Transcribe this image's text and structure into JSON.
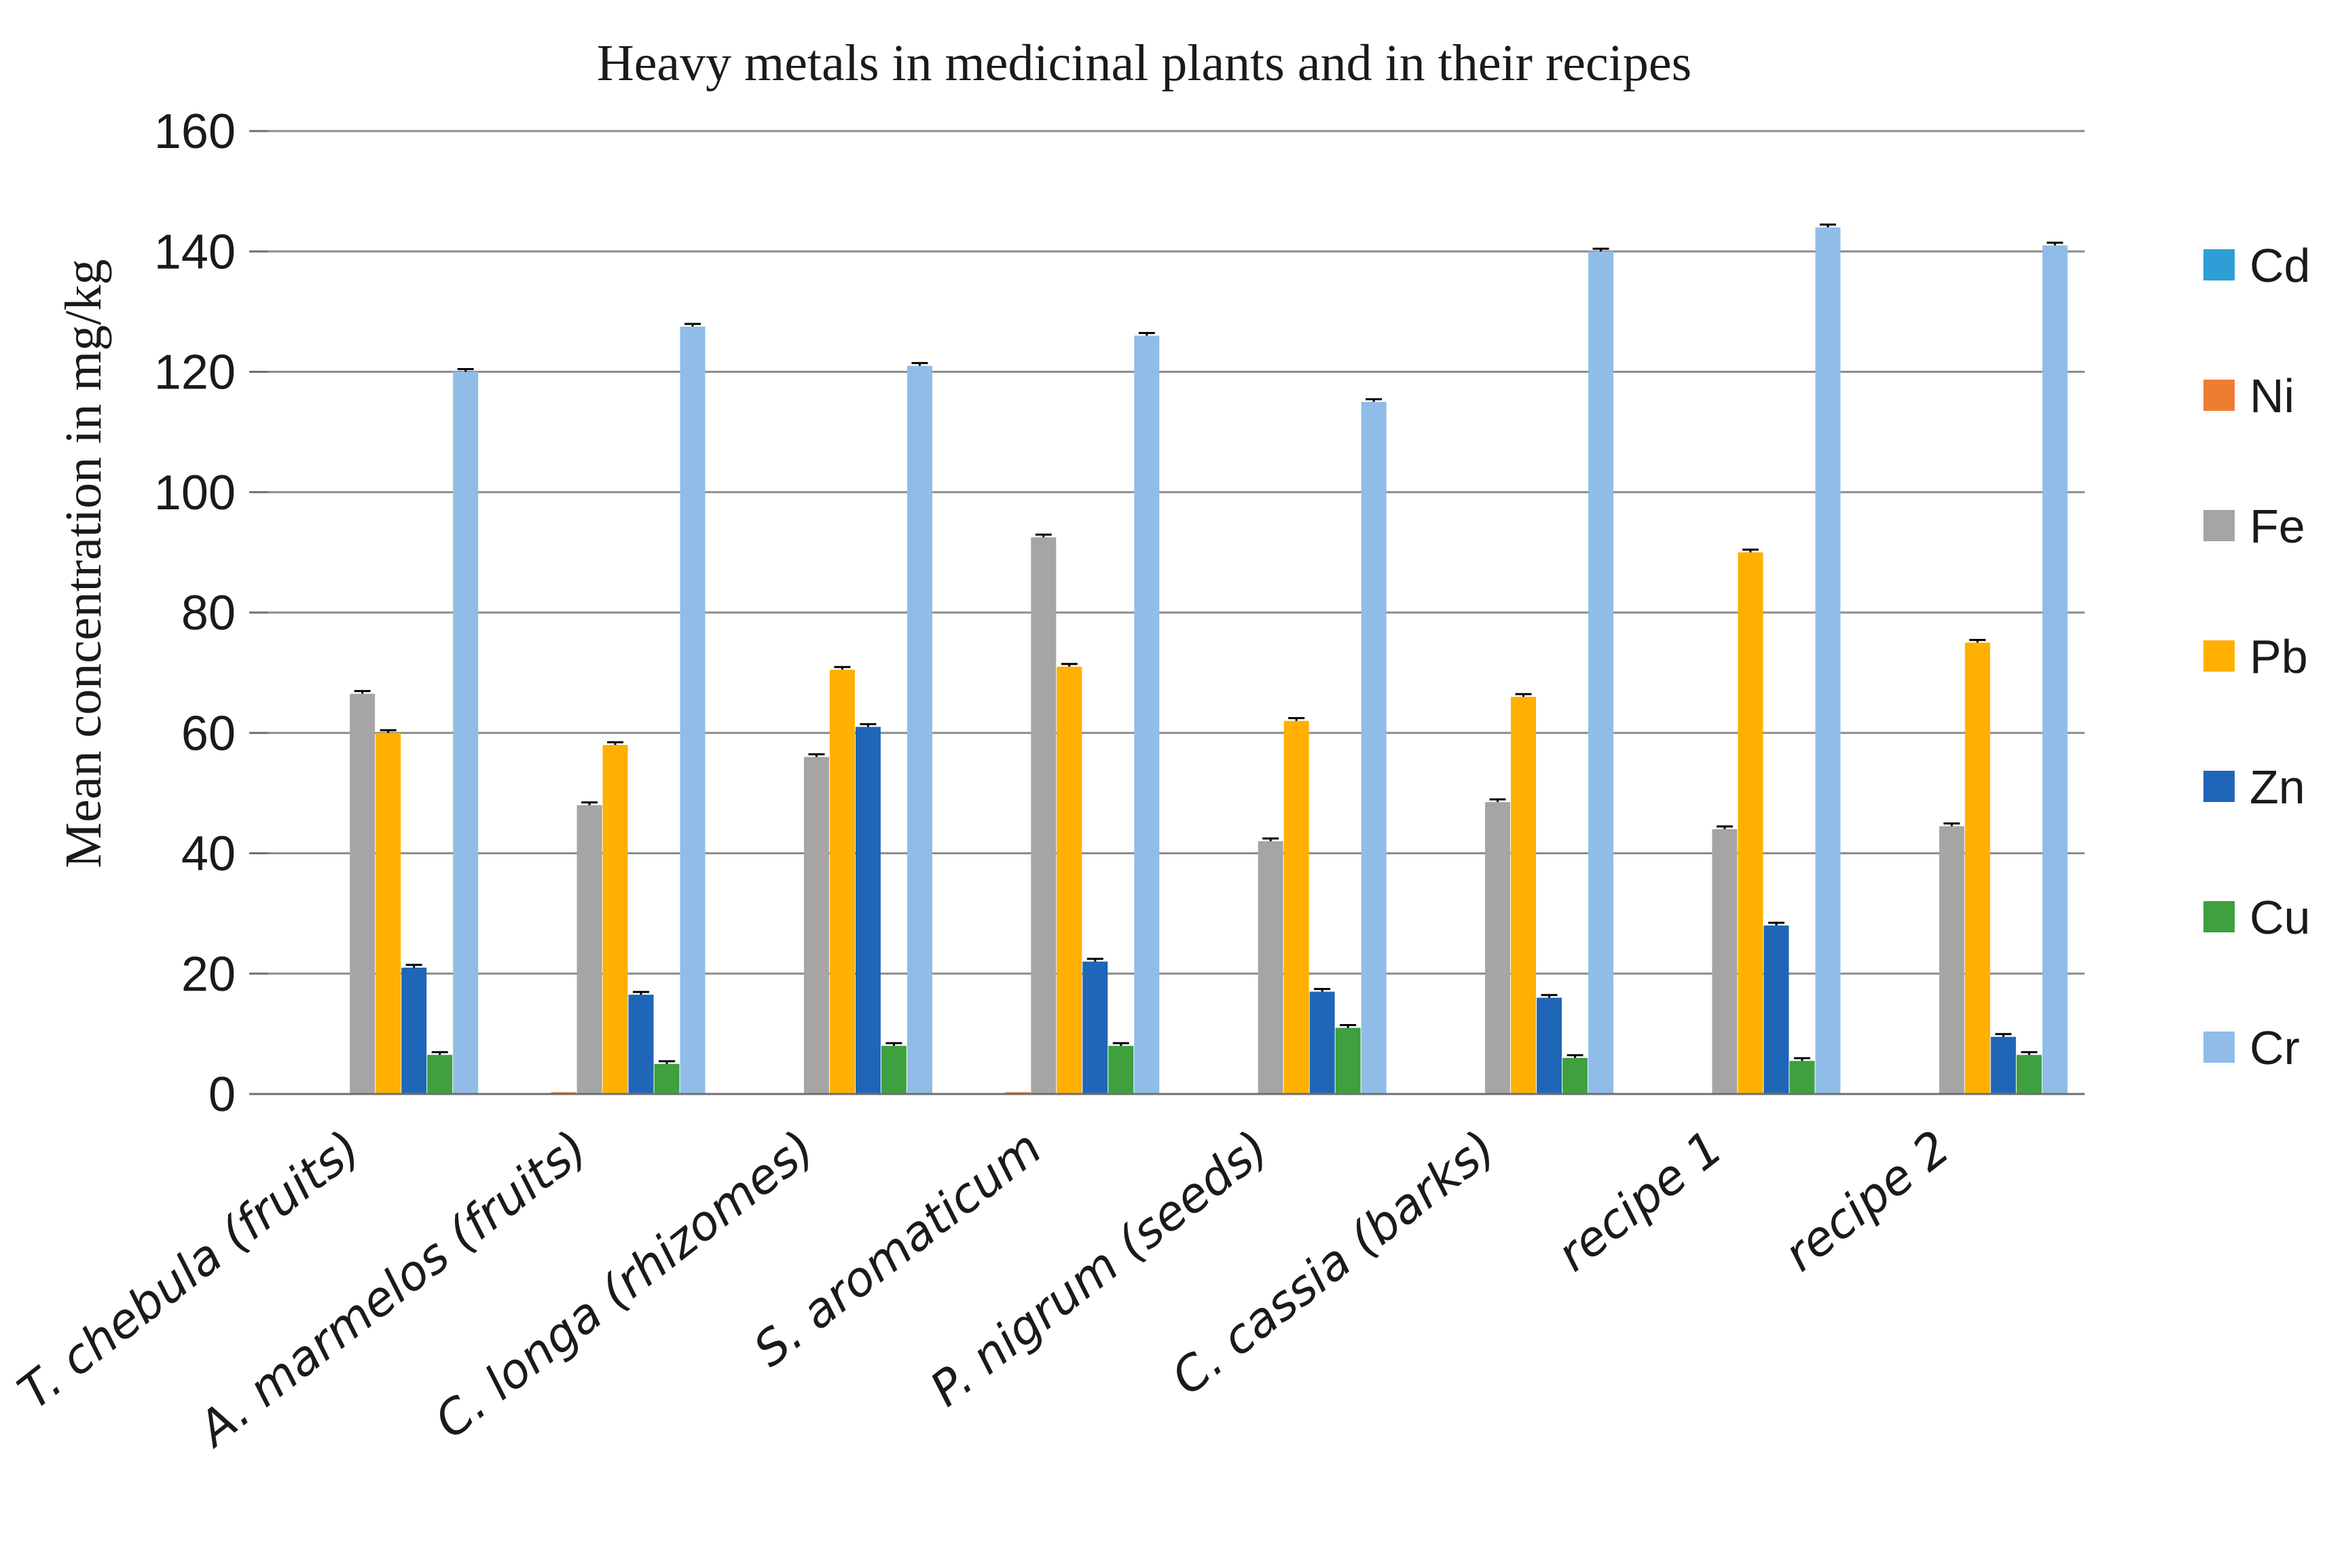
{
  "chart_data": {
    "type": "bar",
    "title": "Heavy metals in medicinal plants and in their  recipes",
    "xlabel": "",
    "ylabel": "Mean concentration in mg/kg",
    "ylim": [
      0,
      160
    ],
    "yticks": [
      0,
      20,
      40,
      60,
      80,
      100,
      120,
      140,
      160
    ],
    "ytick_labels": [
      "0",
      "20",
      "40",
      "60",
      "80",
      "100",
      "120",
      "140",
      "160"
    ],
    "grid": true,
    "legend_position": "right",
    "categories": [
      "T. chebula (fruits)",
      "A. marmelos (fruits)",
      "C. longa (rhizomes)",
      "S. aromaticum",
      "P. nigrum (seeds)",
      "C. cassia (barks)",
      "recipe  1",
      "recipe  2"
    ],
    "series": [
      {
        "name": "Cd",
        "color": "#2E9ED6",
        "values": [
          0,
          0,
          0,
          0,
          0,
          0,
          0,
          0
        ]
      },
      {
        "name": "Ni",
        "color": "#ED7D31",
        "values": [
          0,
          0.3,
          0,
          0.3,
          0,
          0,
          0,
          0
        ]
      },
      {
        "name": "Fe",
        "color": "#A5A5A5",
        "values": [
          66.5,
          48,
          56,
          92.5,
          42,
          48.5,
          44,
          44.5
        ]
      },
      {
        "name": "Pb",
        "color": "#FFB000",
        "values": [
          60,
          58,
          70.5,
          71,
          62,
          66,
          90,
          75
        ]
      },
      {
        "name": "Zn",
        "color": "#1F66B8",
        "values": [
          21,
          16.5,
          61,
          22,
          17,
          16,
          28,
          9.5
        ]
      },
      {
        "name": "Cu",
        "color": "#3EA03E",
        "values": [
          6.5,
          5,
          8,
          8,
          11,
          6,
          5.5,
          6.5
        ]
      },
      {
        "name": "Cr",
        "color": "#8FBDE8",
        "values": [
          120,
          127.5,
          121,
          126,
          115,
          140,
          144,
          141
        ]
      }
    ]
  }
}
